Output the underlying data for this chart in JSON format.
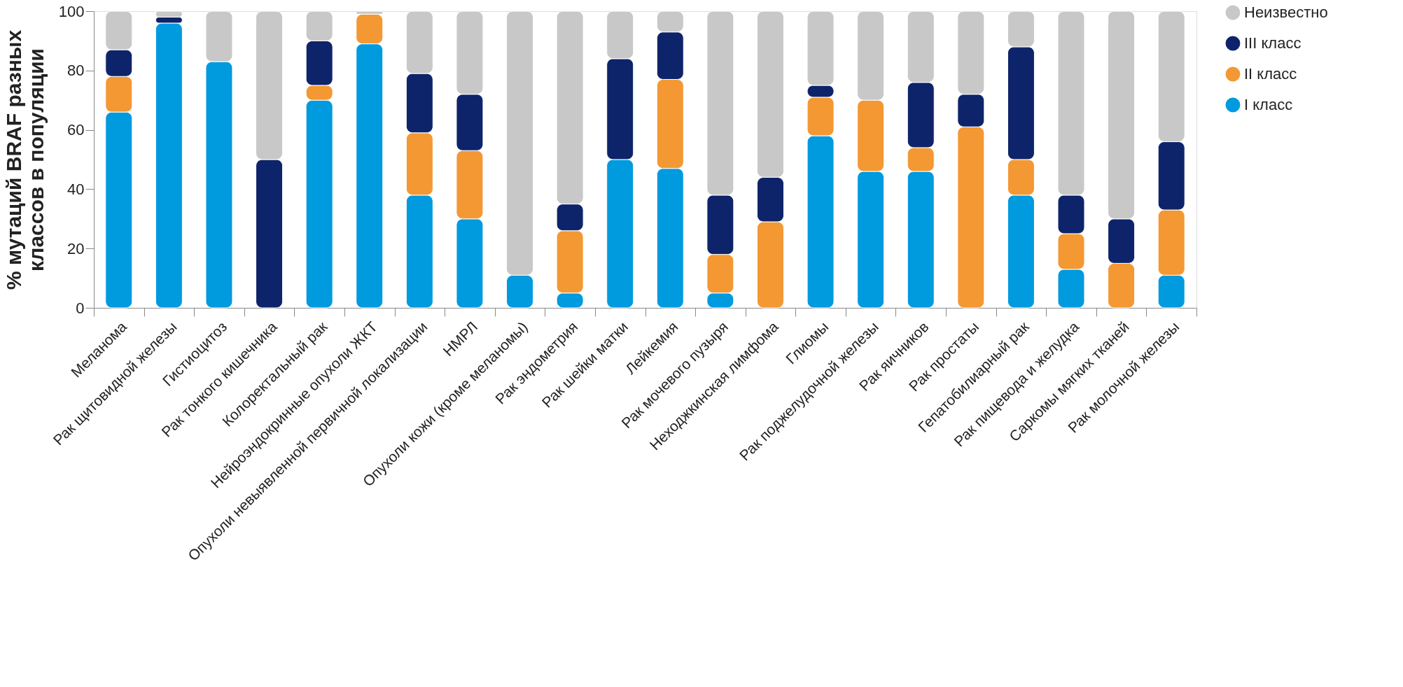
{
  "chart_data": {
    "type": "bar",
    "stacked": true,
    "ylabel": "% мутаций BRAF разных классов в популяции",
    "categories": [
      "Меланома",
      "Рак щитовидной железы",
      "Гистиоцитоз",
      "Рак тонкого кишечника",
      "Колоректальный рак",
      "Нейроэндокринные опухоли ЖКТ",
      "Опухоли невыявленной первичной локализации",
      "НМРЛ",
      "Опухоли кожи (кроме меланомы)",
      "Рак эндометрия",
      "Рак шейки матки",
      "Лейкемия",
      "Рак мочевого пузыря",
      "Неходжкинская лимфома",
      "Глиомы",
      "Рак поджелудочной железы",
      "Рак яичников",
      "Рак простаты",
      "Гепатобилиарный рак",
      "Рак пищевода и желудка",
      "Саркомы мягких тканей",
      "Рак молочной железы"
    ],
    "series": [
      {
        "name": "I класс",
        "color": "#009ade",
        "values": [
          66,
          96,
          83,
          0,
          70,
          89,
          38,
          30,
          11,
          5,
          50,
          47,
          5,
          0,
          58,
          46,
          46,
          0,
          38,
          13,
          0,
          11
        ]
      },
      {
        "name": "II класс",
        "color": "#f39833",
        "values": [
          12,
          0,
          0,
          0,
          5,
          10,
          21,
          23,
          0,
          21,
          0,
          30,
          13,
          29,
          13,
          24,
          8,
          61,
          12,
          12,
          15,
          22
        ]
      },
      {
        "name": "III класс",
        "color": "#0e246a",
        "values": [
          9,
          2,
          0,
          50,
          15,
          0,
          20,
          19,
          0,
          9,
          34,
          16,
          20,
          15,
          4,
          0,
          22,
          11,
          38,
          13,
          15,
          23
        ]
      },
      {
        "name": "Неизвестно",
        "color": "#c8c8c8",
        "values": [
          13,
          2,
          17,
          50,
          10,
          1,
          21,
          28,
          89,
          65,
          16,
          7,
          62,
          56,
          25,
          30,
          24,
          28,
          12,
          62,
          70,
          44
        ]
      }
    ],
    "ylim": [
      0,
      100
    ],
    "yticks": [
      0,
      20,
      40,
      60,
      80,
      100
    ],
    "grid": false,
    "legend": "top right"
  }
}
